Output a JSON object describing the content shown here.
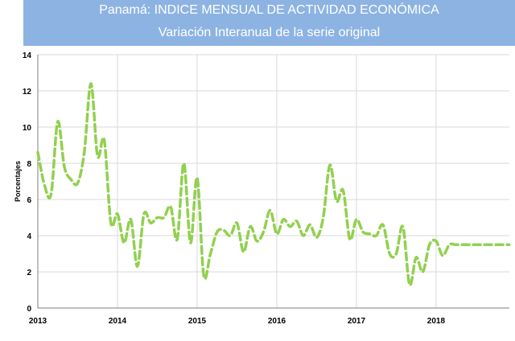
{
  "header": {
    "title": "Panamá: INDICE MENSUAL DE ACTIVIDAD ECONÓMICA",
    "subtitle": "Variación Interanual de la serie original"
  },
  "colors": {
    "banner": "#8db3e2",
    "line": "#92d050",
    "grid": "#d9d9d9"
  },
  "chart_data": {
    "type": "line",
    "title": "Panamá: INDICE MENSUAL DE ACTIVIDAD ECONÓMICA",
    "subtitle": "Variación Interanual de la serie original",
    "ylabel": "Porcentajes",
    "xlabel": "",
    "ylim": [
      0,
      14
    ],
    "yticks": [
      0,
      2,
      4,
      6,
      8,
      10,
      12,
      14
    ],
    "xlim": [
      2013,
      2018.92
    ],
    "xticks": [
      2013,
      2014,
      2015,
      2016,
      2017,
      2018
    ],
    "grid": true,
    "line_style": "dashed",
    "series": [
      {
        "x": [
          2013.0,
          2013.083,
          2013.167,
          2013.25,
          2013.333,
          2013.417,
          2013.5,
          2013.583,
          2013.667,
          2013.75,
          2013.833,
          2013.917,
          2014.0,
          2014.083,
          2014.167,
          2014.25,
          2014.333,
          2014.417,
          2014.5,
          2014.583,
          2014.667,
          2014.75,
          2014.833,
          2014.917,
          2015.0,
          2015.083,
          2015.167,
          2015.25,
          2015.333,
          2015.417,
          2015.5,
          2015.583,
          2015.667,
          2015.75,
          2015.833,
          2015.917,
          2016.0,
          2016.083,
          2016.167,
          2016.25,
          2016.333,
          2016.417,
          2016.5,
          2016.583,
          2016.667,
          2016.75,
          2016.833,
          2016.917,
          2017.0,
          2017.083,
          2017.167,
          2017.25,
          2017.333,
          2017.417,
          2017.5,
          2017.583,
          2017.667,
          2017.75,
          2017.833,
          2017.917,
          2018.0,
          2018.083,
          2018.167,
          2018.25,
          2018.333,
          2018.417,
          2018.5,
          2018.583,
          2018.667,
          2018.75,
          2018.833,
          2018.917
        ],
        "values": [
          8.6,
          6.8,
          6.3,
          10.3,
          7.8,
          7.1,
          6.9,
          8.6,
          12.4,
          8.4,
          9.3,
          4.7,
          5.2,
          3.6,
          4.9,
          2.3,
          5.2,
          4.7,
          5.0,
          5.0,
          5.6,
          3.8,
          8.0,
          3.6,
          7.2,
          1.8,
          3.0,
          4.2,
          4.3,
          4.0,
          4.7,
          3.1,
          4.5,
          3.7,
          4.2,
          5.4,
          4.1,
          4.9,
          4.5,
          4.8,
          4.0,
          4.6,
          3.9,
          5.0,
          7.9,
          5.9,
          6.5,
          3.8,
          4.9,
          4.2,
          4.1,
          4.0,
          4.6,
          3.0,
          3.0,
          4.5,
          1.3,
          2.8,
          2.0,
          3.5,
          3.7,
          2.9,
          3.5,
          3.5,
          3.5,
          3.5,
          3.5,
          3.5,
          3.5,
          3.5,
          3.5,
          3.5
        ]
      }
    ]
  }
}
